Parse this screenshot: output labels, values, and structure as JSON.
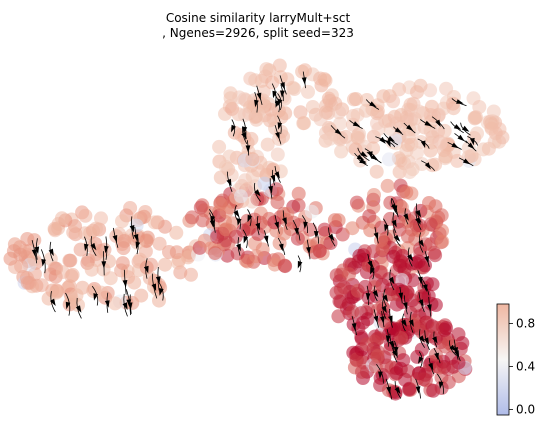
{
  "chart_data": {
    "type": "scatter",
    "title_line1": "Cosine similarity larryMult+sct",
    "title_line2": ", Ngenes=2926, split seed=323",
    "xlabel": "",
    "ylabel": "",
    "grid": false,
    "colorbar": {
      "ticks": [
        "0.0",
        "0.4",
        "0.8"
      ],
      "tick_values": [
        0.0,
        0.4,
        0.8
      ],
      "range": [
        -0.05,
        0.98
      ],
      "colors": [
        "#b0bce9",
        "#f7f6f5",
        "#efb7a2"
      ]
    },
    "regions": [
      {
        "name": "bottom",
        "value": 0.97
      },
      {
        "name": "middle",
        "value": 0.9
      },
      {
        "name": "left",
        "value": 0.78
      },
      {
        "name": "top-right",
        "value": 0.7
      },
      {
        "name": "top-center",
        "value": 0.72
      }
    ],
    "accent_colors": {
      "high": "#b40a2c",
      "mid": "#e28a79",
      "low": "#c9d2ef"
    }
  }
}
